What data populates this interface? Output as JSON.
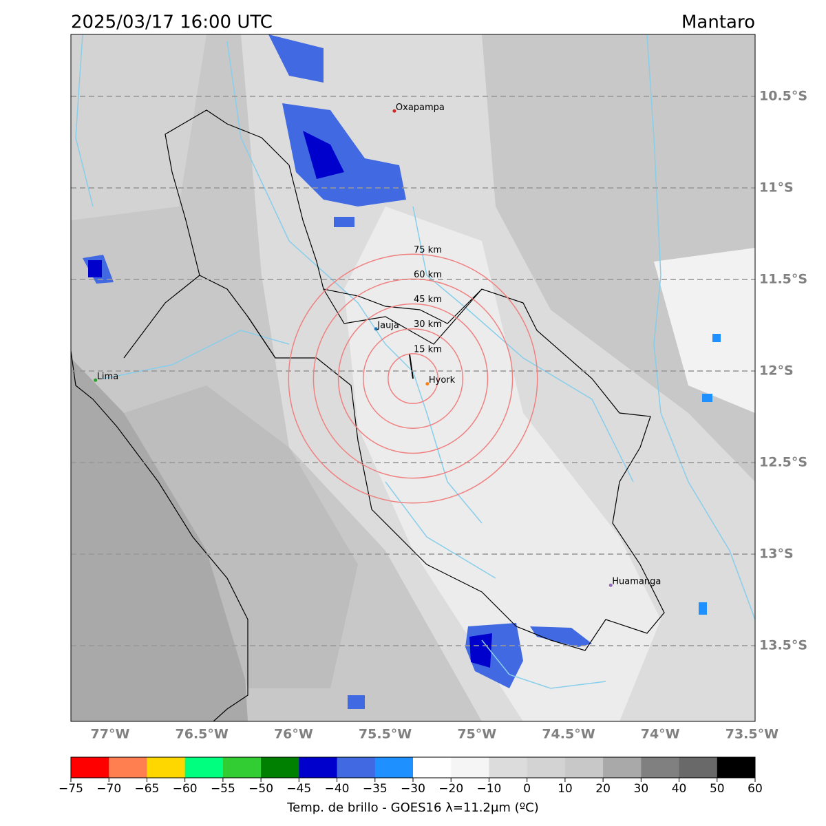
{
  "map": {
    "title": "2025/03/17 16:00 UTC",
    "region": "Mantaro",
    "lon_ticks": [
      {
        "value": -77,
        "label": "77°W"
      },
      {
        "value": -76.5,
        "label": "76.5°W"
      },
      {
        "value": -76,
        "label": "76°W"
      },
      {
        "value": -75.5,
        "label": "75.5°W"
      },
      {
        "value": -75,
        "label": "75°W"
      },
      {
        "value": -74.5,
        "label": "74.5°W"
      },
      {
        "value": -74,
        "label": "74°W"
      },
      {
        "value": -73.5,
        "label": "73.5°W"
      }
    ],
    "lat_ticks": [
      {
        "value": -10.5,
        "label": "10.5°S"
      },
      {
        "value": -11,
        "label": "11°S"
      },
      {
        "value": -11.5,
        "label": "11.5°S"
      },
      {
        "value": -12,
        "label": "12°S"
      },
      {
        "value": -12.5,
        "label": "12.5°S"
      },
      {
        "value": -13,
        "label": "13°S"
      },
      {
        "value": -13.5,
        "label": "13.5°S"
      }
    ],
    "cities": [
      {
        "name": "Oxapampa",
        "lon": -75.45,
        "lat": -10.58,
        "color": "#d62728"
      },
      {
        "name": "Jauja",
        "lon": -75.55,
        "lat": -11.77,
        "color": "#1f77b4"
      },
      {
        "name": "Hyork",
        "lon": -75.27,
        "lat": -12.07,
        "color": "#ff7f0e"
      },
      {
        "name": "Lima",
        "lon": -77.08,
        "lat": -12.05,
        "color": "#2ca02c"
      },
      {
        "name": "Huamanga",
        "lon": -74.27,
        "lat": -13.17,
        "color": "#9467bd"
      }
    ],
    "rings": [
      {
        "value": 15,
        "label": "15 km"
      },
      {
        "value": 30,
        "label": "30 km"
      },
      {
        "value": 45,
        "label": "45 km"
      },
      {
        "value": 60,
        "label": "60 km"
      },
      {
        "value": 75,
        "label": "75 km"
      }
    ],
    "colorbar": {
      "label": "Temp. de brillo - GOES16 λ=11.2μm (ºC)",
      "ticks": [
        {
          "value": -75,
          "label": "−75"
        },
        {
          "value": -70,
          "label": "−70"
        },
        {
          "value": -65,
          "label": "−65"
        },
        {
          "value": -60,
          "label": "−60"
        },
        {
          "value": -55,
          "label": "−55"
        },
        {
          "value": -50,
          "label": "−50"
        },
        {
          "value": -45,
          "label": "−45"
        },
        {
          "value": -40,
          "label": "−40"
        },
        {
          "value": -35,
          "label": "−35"
        },
        {
          "value": -30,
          "label": "−30"
        },
        {
          "value": -20,
          "label": "−20"
        },
        {
          "value": -10,
          "label": "−10"
        },
        0,
        10,
        20,
        30,
        40,
        50,
        60
      ],
      "colors": [
        "#ff0000",
        "#ff7f50",
        "#ffd700",
        "#00ff7f",
        "#32cd32",
        "#008000",
        "#0000cd",
        "#4169e1",
        "#1e90ff",
        "#ffffff",
        "#f5f5f5",
        "#dcdcdc",
        "#d3d3d3",
        "#c8c8c8",
        "#a9a9a9",
        "#808080",
        "#696969",
        "#000000"
      ]
    }
  }
}
